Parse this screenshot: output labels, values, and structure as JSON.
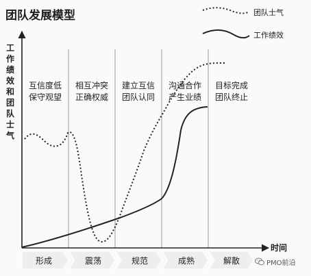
{
  "title": "团队发展模型",
  "legend": {
    "morale_label": "团队士气",
    "performance_label": "工作绩效"
  },
  "axes": {
    "y_label": "工作绩效和团队士气",
    "x_label": "时间"
  },
  "stages": [
    {
      "name": "形成",
      "desc_line1": "互信度低",
      "desc_line2": "保守观望"
    },
    {
      "name": "震荡",
      "desc_line1": "相互冲突",
      "desc_line2": "正确权威"
    },
    {
      "name": "规范",
      "desc_line1": "建立互信",
      "desc_line2": "团队认同"
    },
    {
      "name": "成熟",
      "desc_line1": "沟通合作",
      "desc_line2": "产生业绩"
    },
    {
      "name": "解散",
      "desc_line1": "目标完成",
      "desc_line2": "团队终止"
    }
  ],
  "colors": {
    "curve": "#222222",
    "divider": "#9a9a9a",
    "axis": "#222222",
    "stage_band": "#eeeeee"
  },
  "watermark": {
    "icon": "wechat-icon",
    "text": "PMO前沿"
  }
}
